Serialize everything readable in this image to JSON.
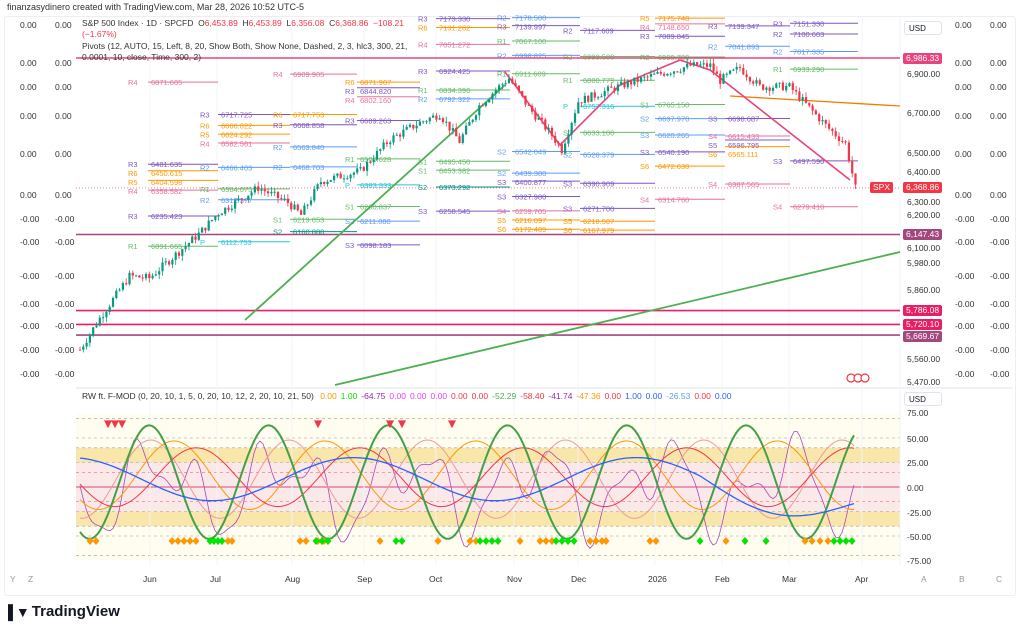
{
  "credit": "finanzasydinero created with TradingView.com, Mar 28, 2026 10:52 UTC-5",
  "symbol": {
    "title": "S&P 500 Index · 1D · SPCFD",
    "o_label": "O",
    "o": "6,453.89",
    "h_label": "H",
    "h": "6,453.89",
    "l_label": "L",
    "l": "6,356.08",
    "c_label": "C",
    "c": "6,368.86",
    "change": "−108.21 (−1.67%)"
  },
  "pivots_legend": "Pivots (12, AUTO, 15, Left, 8, 20, Show Both, Show None, Dashed, 2, 3, hlc3, 300, 21, 0.0001, 10, close, Time, 300, 2)",
  "indicator": {
    "name": "RW ft. F-MOD (0, 20, 10, 1, 5, 0, 20, 10, 12, 2, 20, 10, 21, 50)",
    "values": [
      {
        "v": "0.00",
        "color": "#ff9800"
      },
      {
        "v": "1.00",
        "color": "#00e600"
      },
      {
        "v": "-64.75",
        "color": "#9c27b0"
      },
      {
        "v": "0.00",
        "color": "#e040fb"
      },
      {
        "v": "0.00",
        "color": "#e040fb"
      },
      {
        "v": "0.00",
        "color": "#e040fb"
      },
      {
        "v": "0.00",
        "color": "#f23645"
      },
      {
        "v": "0.00",
        "color": "#f23645"
      },
      {
        "v": "-52.29",
        "color": "#4caf50"
      },
      {
        "v": "-58.40",
        "color": "#f23645"
      },
      {
        "v": "-41.74",
        "color": "#9c27b0"
      },
      {
        "v": "-47.36",
        "color": "#ff9800"
      },
      {
        "v": "0.00",
        "color": "#f23645"
      },
      {
        "v": "1.00",
        "color": "#2962ff"
      },
      {
        "v": "0.00",
        "color": "#2962ff"
      },
      {
        "v": "-26.53",
        "color": "#5b9cf6"
      },
      {
        "v": "0.00",
        "color": "#f23645"
      },
      {
        "v": "0.00",
        "color": "#2962ff"
      }
    ],
    "ticks": [
      "75.00",
      "50.00",
      "25.00",
      "0.00",
      "-25.00",
      "-50.00",
      "-75.00"
    ],
    "currency": "USD"
  },
  "price_axis": {
    "currency": "USD",
    "ticks": [
      "6,900.00",
      "6,700.00",
      "6,500.00",
      "6,400.00",
      "6,300.00",
      "6,200.00",
      "6,100.00",
      "5,980.00",
      "5,860.00",
      "5,560.00",
      "5,470.00"
    ],
    "labels": [
      {
        "text": "6,986.33",
        "color": "#e8437c",
        "price": 6986.33
      },
      {
        "text": "6,147.43",
        "color": "#a3477f",
        "price": 6147.43
      },
      {
        "text": "5,786.08",
        "color": "#e91e63",
        "price": 5786.08
      },
      {
        "text": "5,720.10",
        "color": "#e91e63",
        "price": 5720.1
      },
      {
        "text": "5,669.67",
        "color": "#a3477f",
        "price": 5669.67
      }
    ],
    "last": {
      "symbol": "SPX",
      "price": "6,368.86"
    }
  },
  "side_values": [
    "0.00",
    "0.00",
    "0.00",
    "0.00",
    "0.00",
    "0.00",
    "-0.00",
    "-0.00",
    "-0.00",
    "-0.00",
    "-0.00",
    "-0.00",
    "-0.00"
  ],
  "time_axis": [
    "Jun",
    "Jul",
    "Aug",
    "Sep",
    "Oct",
    "Nov",
    "Dec",
    "2026",
    "Feb",
    "Mar",
    "Apr"
  ],
  "time_axis_extra": [
    "Y",
    "Z",
    "A",
    "B",
    "C"
  ],
  "brand": "TradingView",
  "price_anchors": [
    [
      0,
      5600
    ],
    [
      6,
      5750
    ],
    [
      15,
      5950
    ],
    [
      21,
      5940
    ],
    [
      36,
      6150
    ],
    [
      42,
      6250
    ],
    [
      54,
      6370
    ],
    [
      63,
      6300
    ],
    [
      67,
      6240
    ],
    [
      73,
      6400
    ],
    [
      85,
      6450
    ],
    [
      94,
      6600
    ],
    [
      103,
      6680
    ],
    [
      109,
      6720
    ],
    [
      115,
      6590
    ],
    [
      121,
      6760
    ],
    [
      127,
      6850
    ],
    [
      130,
      6890
    ],
    [
      136,
      6750
    ],
    [
      143,
      6620
    ],
    [
      146,
      6550
    ],
    [
      151,
      6780
    ],
    [
      163,
      6850
    ],
    [
      173,
      6900
    ],
    [
      185,
      6950
    ],
    [
      191,
      6950
    ],
    [
      194,
      6880
    ],
    [
      200,
      6940
    ],
    [
      206,
      6850
    ],
    [
      215,
      6850
    ],
    [
      221,
      6750
    ],
    [
      227,
      6650
    ],
    [
      232,
      6580
    ],
    [
      235,
      6368
    ]
  ],
  "pivots": [
    {
      "p": 0,
      "tag": "R4",
      "value": "6871.605",
      "price": 6871.6,
      "c": "pink"
    },
    {
      "p": 0,
      "tag": "R3",
      "value": "6481.635",
      "price": 6481.6,
      "c": "purple"
    },
    {
      "p": 0,
      "tag": "R6",
      "value": "6450.615",
      "price": 6450.6,
      "c": "orange"
    },
    {
      "p": 0,
      "tag": "R5",
      "value": "6404.598",
      "price": 6404.6,
      "c": "orange"
    },
    {
      "p": 0,
      "tag": "R4",
      "value": "6358.582",
      "price": 6358.6,
      "c": "pink"
    },
    {
      "p": 0,
      "tag": "R3",
      "value": "6235.423",
      "price": 6235.4,
      "c": "purple"
    },
    {
      "p": 0,
      "tag": "R1",
      "value": "6091.665",
      "price": 6091.7,
      "c": "green"
    },
    {
      "p": 1,
      "tag": "R3",
      "value": "6717.725",
      "price": 6717.7,
      "c": "purple"
    },
    {
      "p": 1,
      "tag": "R6",
      "value": "6666.022",
      "price": 6666.0,
      "c": "orange"
    },
    {
      "p": 1,
      "tag": "R5",
      "value": "6624.292",
      "price": 6624.3,
      "c": "orange"
    },
    {
      "p": 1,
      "tag": "R4",
      "value": "6582.561",
      "price": 6582.6,
      "c": "pink"
    },
    {
      "p": 1,
      "tag": "R2",
      "value": "6466.403",
      "price": 6466.4,
      "c": "blue"
    },
    {
      "p": 1,
      "tag": "R1",
      "value": "6364.075",
      "price": 6364.1,
      "c": "green"
    },
    {
      "p": 1,
      "tag": "R2",
      "value": "6312.377",
      "price": 6312.4,
      "c": "blue"
    },
    {
      "p": 1,
      "tag": "P",
      "value": "6112.753",
      "price": 6112.8,
      "c": "cyan"
    },
    {
      "p": 2,
      "tag": "R4",
      "value": "6909.905",
      "price": 6909.9,
      "c": "pink"
    },
    {
      "p": 2,
      "tag": "R6",
      "value": "6717.753",
      "price": 6717.8,
      "c": "orange"
    },
    {
      "p": 2,
      "tag": "R3",
      "value": "6668.858",
      "price": 6668.9,
      "c": "purple"
    },
    {
      "p": 2,
      "tag": "R2",
      "value": "6563.840",
      "price": 6563.8,
      "c": "blue"
    },
    {
      "p": 2,
      "tag": "R2",
      "value": "6468.703",
      "price": 6468.7,
      "c": "blue"
    },
    {
      "p": 2,
      "tag": "S1",
      "value": "6219.653",
      "price": 6219.7,
      "c": "green"
    },
    {
      "p": 2,
      "tag": "S2",
      "value": "6160.888",
      "price": 6160.9,
      "c": "teal"
    },
    {
      "p": 3,
      "tag": "R6",
      "value": "6871.907",
      "price": 6871.9,
      "c": "orange"
    },
    {
      "p": 3,
      "tag": "R3",
      "value": "6844.820",
      "price": 6844.8,
      "c": "purple"
    },
    {
      "p": 3,
      "tag": "R4",
      "value": "6802.160",
      "price": 6802.2,
      "c": "pink"
    },
    {
      "p": 3,
      "tag": "R3",
      "value": "6689.263",
      "price": 6689.3,
      "c": "purple"
    },
    {
      "p": 3,
      "tag": "R1",
      "value": "6506.628",
      "price": 6506.6,
      "c": "green"
    },
    {
      "p": 3,
      "tag": "P",
      "value": "6383.333",
      "price": 6383.3,
      "c": "cyan"
    },
    {
      "p": 3,
      "tag": "S1",
      "value": "6280.837",
      "price": 6280.8,
      "c": "green"
    },
    {
      "p": 3,
      "tag": "S2",
      "value": "6211.080",
      "price": 6211.1,
      "c": "blue"
    },
    {
      "p": 3,
      "tag": "S3",
      "value": "6098.183",
      "price": 6098.2,
      "c": "purple"
    },
    {
      "p": 4,
      "tag": "R3",
      "value": "7173.330",
      "price": 7173.3,
      "c": "purple"
    },
    {
      "p": 4,
      "tag": "R6",
      "value": "7131.262",
      "price": 7131.3,
      "c": "orange"
    },
    {
      "p": 4,
      "tag": "R4",
      "value": "7051.272",
      "price": 7051.3,
      "c": "pink"
    },
    {
      "p": 4,
      "tag": "R3",
      "value": "6924.425",
      "price": 6924.4,
      "c": "purple"
    },
    {
      "p": 4,
      "tag": "R1",
      "value": "6834.390",
      "price": 6834.4,
      "c": "green"
    },
    {
      "p": 4,
      "tag": "R2",
      "value": "6792.322",
      "price": 6792.3,
      "c": "blue"
    },
    {
      "p": 4,
      "tag": "S1",
      "value": "6495.450",
      "price": 6495.5,
      "c": "green"
    },
    {
      "p": 4,
      "tag": "S1",
      "value": "6453.382",
      "price": 6453.4,
      "c": "green"
    },
    {
      "p": 4,
      "tag": "S2",
      "value": "6373.292",
      "price": 6373.3,
      "c": "teal"
    },
    {
      "p": 4,
      "tag": "S3",
      "value": "6258.545",
      "price": 6258.5,
      "c": "purple"
    },
    {
      "p": 5,
      "tag": "R2",
      "value": "7178.500",
      "price": 7178.5,
      "c": "blue"
    },
    {
      "p": 5,
      "tag": "R3",
      "value": "7139.997",
      "price": 7140.0,
      "c": "purple"
    },
    {
      "p": 5,
      "tag": "R1",
      "value": "7067.100",
      "price": 7067.1,
      "c": "green"
    },
    {
      "p": 5,
      "tag": "R2",
      "value": "6998.825",
      "price": 6998.8,
      "c": "blue"
    },
    {
      "p": 5,
      "tag": "R1",
      "value": "6911.609",
      "price": 6911.6,
      "c": "green"
    },
    {
      "p": 5,
      "tag": "S2",
      "value": "6542.049",
      "price": 6542.0,
      "c": "blue"
    },
    {
      "p": 5,
      "tag": "S2",
      "value": "6439.380",
      "price": 6439.4,
      "c": "blue"
    },
    {
      "p": 5,
      "tag": "S3",
      "value": "6400.877",
      "price": 6400.9,
      "c": "purple"
    },
    {
      "p": 5,
      "tag": "S3",
      "value": "6327.980",
      "price": 6328.0,
      "c": "purple"
    },
    {
      "p": 5,
      "tag": "S4",
      "value": "6259.705",
      "price": 6259.7,
      "c": "pink"
    },
    {
      "p": 5,
      "tag": "S5",
      "value": "6216.097",
      "price": 6216.1,
      "c": "orange"
    },
    {
      "p": 5,
      "tag": "S6",
      "value": "6172.489",
      "price": 6172.5,
      "c": "orange"
    },
    {
      "p": 6,
      "tag": "R2",
      "value": "7117.609",
      "price": 7117.6,
      "c": "purple"
    },
    {
      "p": 6,
      "tag": "R2",
      "value": "6993.500",
      "price": 6993.5,
      "c": "green"
    },
    {
      "p": 6,
      "tag": "R1",
      "value": "6880.779",
      "price": 6880.8,
      "c": "green"
    },
    {
      "p": 6,
      "tag": "P",
      "value": "6757.316",
      "price": 6757.3,
      "c": "cyan"
    },
    {
      "p": 6,
      "tag": "S3",
      "value": "6633.100",
      "price": 6633.1,
      "c": "green"
    },
    {
      "p": 6,
      "tag": "S2",
      "value": "6528.379",
      "price": 6528.4,
      "c": "blue"
    },
    {
      "p": 6,
      "tag": "S3",
      "value": "6390.909",
      "price": 6390.9,
      "c": "purple"
    },
    {
      "p": 6,
      "tag": "S3",
      "value": "6271.700",
      "price": 6271.7,
      "c": "purple"
    },
    {
      "p": 6,
      "tag": "S5",
      "value": "6210.507",
      "price": 6210.5,
      "c": "orange"
    },
    {
      "p": 6,
      "tag": "S6",
      "value": "6167.979",
      "price": 6168.0,
      "c": "orange"
    },
    {
      "p": 7,
      "tag": "R5",
      "value": "7175.748",
      "price": 7175.7,
      "c": "orange"
    },
    {
      "p": 7,
      "tag": "R4",
      "value": "7148.650",
      "price": 7148.7,
      "c": "pink"
    },
    {
      "p": 7,
      "tag": "R3",
      "value": "7089.845",
      "price": 7089.8,
      "c": "purple"
    },
    {
      "p": 7,
      "tag": "R2",
      "value": "6990.780",
      "price": 6990.8,
      "c": "green"
    },
    {
      "p": 7,
      "tag": "S1",
      "value": "6765.150",
      "price": 6765.2,
      "c": "green"
    },
    {
      "p": 7,
      "tag": "S2",
      "value": "6697.970",
      "price": 6698.0,
      "c": "blue"
    },
    {
      "p": 7,
      "tag": "S3",
      "value": "6620.265",
      "price": 6620.3,
      "c": "blue"
    },
    {
      "p": 7,
      "tag": "S3",
      "value": "6540.190",
      "price": 6540.2,
      "c": "purple"
    },
    {
      "p": 7,
      "tag": "S6",
      "value": "6472.630",
      "price": 6472.6,
      "c": "orange"
    },
    {
      "p": 7,
      "tag": "S4",
      "value": "6314.760",
      "price": 6314.8,
      "c": "pink"
    },
    {
      "p": 8,
      "tag": "R3",
      "value": "7139.347",
      "price": 7139.3,
      "c": "purple"
    },
    {
      "p": 8,
      "tag": "R2",
      "value": "7041.893",
      "price": 7041.9,
      "c": "blue"
    },
    {
      "p": 8,
      "tag": "S3",
      "value": "6698.687",
      "price": 6698.7,
      "c": "purple"
    },
    {
      "p": 8,
      "tag": "S4",
      "value": "6615.433",
      "price": 6615.4,
      "c": "pink"
    },
    {
      "p": 8,
      "tag": "S5",
      "value": "6596.795",
      "price": 6596.8,
      "c": "purple"
    },
    {
      "p": 8,
      "tag": "S6",
      "value": "6565.111",
      "price": 6565.1,
      "c": "orange"
    },
    {
      "p": 8,
      "tag": "S4",
      "value": "6387.565",
      "price": 6387.6,
      "c": "pink"
    },
    {
      "p": 9,
      "tag": "R3",
      "value": "7151.330",
      "price": 7151.3,
      "c": "purple"
    },
    {
      "p": 9,
      "tag": "R2",
      "value": "7100.603",
      "price": 7100.6,
      "c": "purple"
    },
    {
      "p": 9,
      "tag": "R2",
      "value": "7017.335",
      "price": 7017.3,
      "c": "blue"
    },
    {
      "p": 9,
      "tag": "R1",
      "value": "6933.290",
      "price": 6933.3,
      "c": "green"
    },
    {
      "p": 9,
      "tag": "S3",
      "value": "6497.590",
      "price": 6497.6,
      "c": "purple"
    },
    {
      "p": 9,
      "tag": "S4",
      "value": "6279.410",
      "price": 6279.4,
      "c": "pink"
    }
  ],
  "colors": {
    "up": "#089981",
    "down": "#f23645",
    "pink": "#e8719c",
    "purple": "#7e57c2",
    "orange": "#ff9800",
    "green": "#66bb6a",
    "blue": "#5b9cf6",
    "cyan": "#26c6da",
    "teal": "#009688",
    "trend_green": "#4caf50",
    "trend_red": "#e8437c",
    "trend_orange": "#f57c00"
  }
}
